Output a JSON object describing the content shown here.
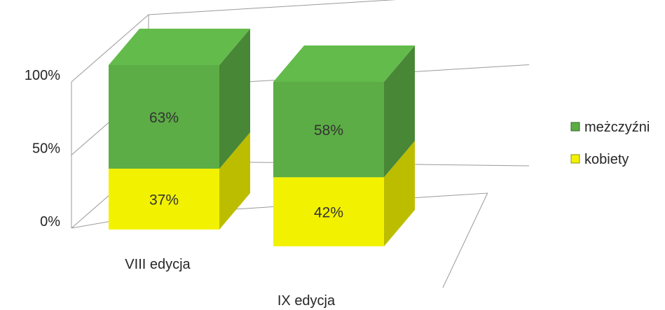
{
  "chart_data": {
    "type": "bar",
    "stacked": true,
    "three_d": true,
    "categories": [
      "VIII edycja",
      "IX edycja"
    ],
    "series": [
      {
        "name": "kobiety",
        "values": [
          37,
          42
        ],
        "labels": [
          "37%",
          "42%"
        ],
        "color": "#f2f200"
      },
      {
        "name": "meżczyźni",
        "values": [
          63,
          58
        ],
        "labels": [
          "63%",
          "58%"
        ],
        "color": "#5cad45"
      }
    ],
    "y_ticks": [
      {
        "value": 0,
        "label": "0%"
      },
      {
        "value": 50,
        "label": "50%"
      },
      {
        "value": 100,
        "label": "100%"
      }
    ],
    "ylim": [
      0,
      100
    ],
    "legend_position": "right",
    "grid": true,
    "colors": {
      "grid": "#9a9a9a",
      "text": "#262626"
    }
  }
}
